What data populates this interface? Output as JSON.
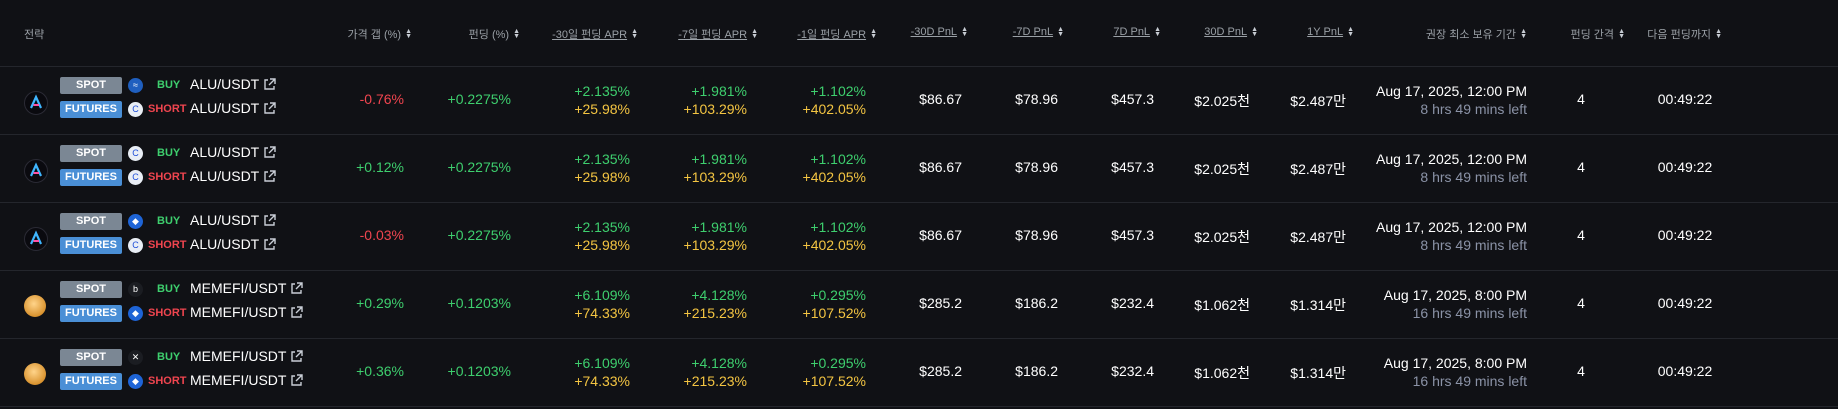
{
  "headers": {
    "strategy": "전략",
    "price_gap": "가격 갭 (%)",
    "funding": "펀딩 (%)",
    "apr30": "-30일 펀딩 APR",
    "apr7": "-7일 펀딩 APR",
    "apr1": "-1일 펀딩 APR",
    "pnl30_past": "-30D PnL",
    "pnl7_past": "-7D PnL",
    "pnl7": "7D PnL",
    "pnl30": "30D PnL",
    "pnl1y": "1Y PnL",
    "hold": "권장 최소 보유 기간",
    "interval": "펀딩 간격",
    "next": "다음 펀딩까지"
  },
  "badges": {
    "spot": "SPOT",
    "futures": "FUTURES",
    "buy": "BUY",
    "short": "SHORT"
  },
  "colors": {
    "background": "#101115",
    "positive": "#3ecf6e",
    "negative": "#f0454f",
    "highlight": "#f4c542",
    "spot_badge": "#7b8794",
    "futures_badge": "#4a8fd6"
  },
  "rows": [
    {
      "logo": "alu-logo-icon",
      "spot_exchange_icon": "exchange-wave-icon",
      "futures_exchange_icon": "exchange-c-icon",
      "spot_pair": "ALU/USDT",
      "futures_pair": "ALU/USDT",
      "price_gap": "-0.76%",
      "funding": "+0.2275%",
      "apr30_a": "+2.135%",
      "apr30_b": "+25.98%",
      "apr7_a": "+1.981%",
      "apr7_b": "+103.29%",
      "apr1_a": "+1.102%",
      "apr1_b": "+402.05%",
      "pnl30_past": "$86.67",
      "pnl7_past": "$78.96",
      "pnl7": "$457.3",
      "pnl30": "$2.025천",
      "pnl1y": "$2.487만",
      "hold_date": "Aug 17, 2025, 12:00 PM",
      "hold_left": "8 hrs 49 mins left",
      "interval": "4",
      "next": "00:49:22"
    },
    {
      "logo": "alu-logo-icon",
      "spot_exchange_icon": "exchange-c-icon",
      "futures_exchange_icon": "exchange-c-icon",
      "spot_pair": "ALU/USDT",
      "futures_pair": "ALU/USDT",
      "price_gap": "+0.12%",
      "funding": "+0.2275%",
      "apr30_a": "+2.135%",
      "apr30_b": "+25.98%",
      "apr7_a": "+1.981%",
      "apr7_b": "+103.29%",
      "apr1_a": "+1.102%",
      "apr1_b": "+402.05%",
      "pnl30_past": "$86.67",
      "pnl7_past": "$78.96",
      "pnl7": "$457.3",
      "pnl30": "$2.025천",
      "pnl1y": "$2.487만",
      "hold_date": "Aug 17, 2025, 12:00 PM",
      "hold_left": "8 hrs 49 mins left",
      "interval": "4",
      "next": "00:49:22"
    },
    {
      "logo": "alu-logo-icon",
      "spot_exchange_icon": "exchange-drop-icon",
      "futures_exchange_icon": "exchange-c-icon",
      "spot_pair": "ALU/USDT",
      "futures_pair": "ALU/USDT",
      "price_gap": "-0.03%",
      "funding": "+0.2275%",
      "apr30_a": "+2.135%",
      "apr30_b": "+25.98%",
      "apr7_a": "+1.981%",
      "apr7_b": "+103.29%",
      "apr1_a": "+1.102%",
      "apr1_b": "+402.05%",
      "pnl30_past": "$86.67",
      "pnl7_past": "$78.96",
      "pnl7": "$457.3",
      "pnl30": "$2.025천",
      "pnl1y": "$2.487만",
      "hold_date": "Aug 17, 2025, 12:00 PM",
      "hold_left": "8 hrs 49 mins left",
      "interval": "4",
      "next": "00:49:22"
    },
    {
      "logo": "memefi-logo-icon",
      "spot_exchange_icon": "exchange-bitget-icon",
      "futures_exchange_icon": "exchange-drop-icon",
      "spot_pair": "MEMEFI/USDT",
      "futures_pair": "MEMEFI/USDT",
      "price_gap": "+0.29%",
      "funding": "+0.1203%",
      "apr30_a": "+6.109%",
      "apr30_b": "+74.33%",
      "apr7_a": "+4.128%",
      "apr7_b": "+215.23%",
      "apr1_a": "+0.295%",
      "apr1_b": "+107.52%",
      "pnl30_past": "$285.2",
      "pnl7_past": "$186.2",
      "pnl7": "$232.4",
      "pnl30": "$1.062천",
      "pnl1y": "$1.314만",
      "hold_date": "Aug 17, 2025, 8:00 PM",
      "hold_left": "16 hrs 49 mins left",
      "interval": "4",
      "next": "00:49:22"
    },
    {
      "logo": "memefi-logo-icon",
      "spot_exchange_icon": "exchange-okx-icon",
      "futures_exchange_icon": "exchange-drop-icon",
      "spot_pair": "MEMEFI/USDT",
      "futures_pair": "MEMEFI/USDT",
      "price_gap": "+0.36%",
      "funding": "+0.1203%",
      "apr30_a": "+6.109%",
      "apr30_b": "+74.33%",
      "apr7_a": "+4.128%",
      "apr7_b": "+215.23%",
      "apr1_a": "+0.295%",
      "apr1_b": "+107.52%",
      "pnl30_past": "$285.2",
      "pnl7_past": "$186.2",
      "pnl7": "$232.4",
      "pnl30": "$1.062천",
      "pnl1y": "$1.314만",
      "hold_date": "Aug 17, 2025, 8:00 PM",
      "hold_left": "16 hrs 49 mins left",
      "interval": "4",
      "next": "00:49:22"
    }
  ]
}
